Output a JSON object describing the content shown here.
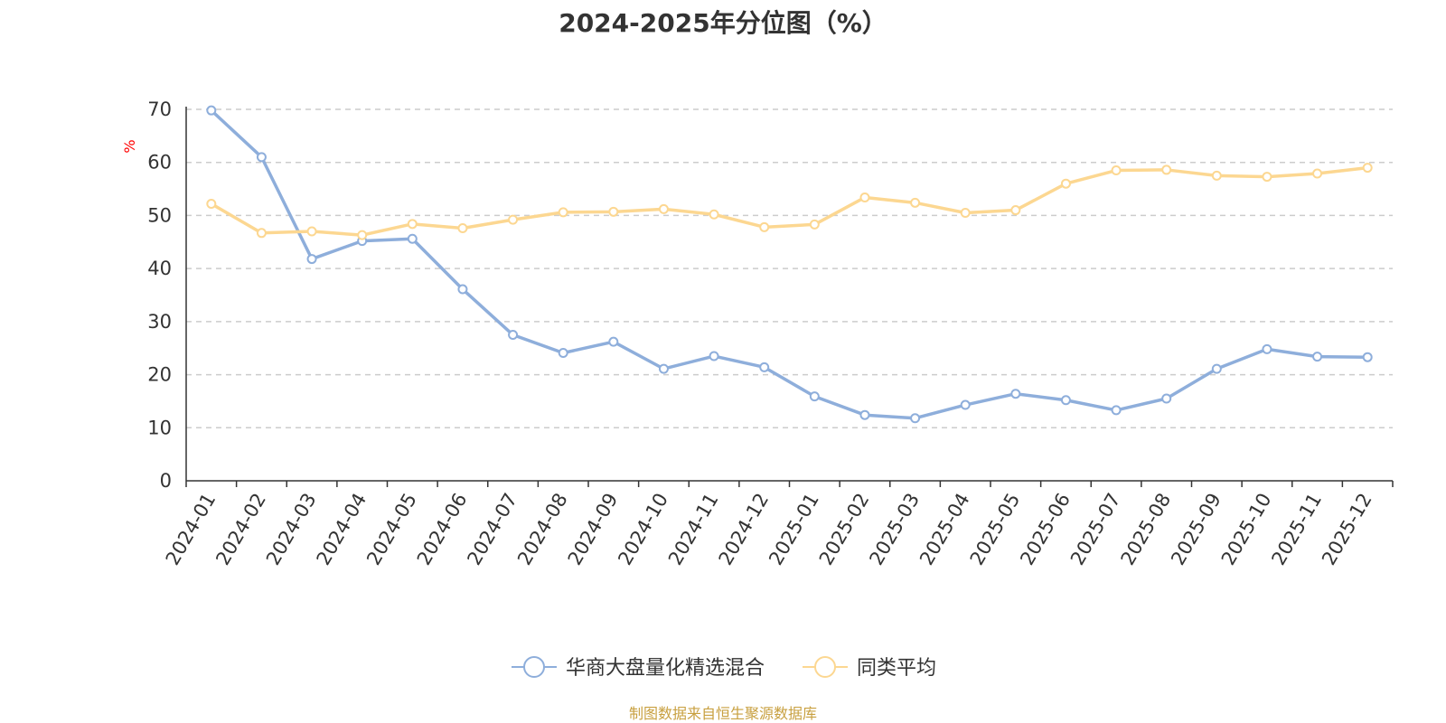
{
  "title": "2024-2025年分位图（%）",
  "source": "制图数据来自恒生聚源数据库",
  "chart_data": {
    "type": "line",
    "title": "2024-2025年分位图（%）",
    "ylabel": "%",
    "xlabel": "",
    "ylim": [
      0,
      70
    ],
    "yticks": [
      0,
      10,
      20,
      30,
      40,
      50,
      60,
      70
    ],
    "grid": "horizontal-dashed",
    "legend_position": "bottom",
    "categories": [
      "2024-01",
      "2024-02",
      "2024-03",
      "2024-04",
      "2024-05",
      "2024-06",
      "2024-07",
      "2024-08",
      "2024-09",
      "2024-10",
      "2024-11",
      "2024-12",
      "2025-01",
      "2025-02",
      "2025-03",
      "2025-04",
      "2025-05",
      "2025-06",
      "2025-07",
      "2025-08",
      "2025-09",
      "2025-10",
      "2025-11",
      "2025-12"
    ],
    "series": [
      {
        "name": "华商大盘量化精选混合",
        "color": "#8eaedb",
        "values": [
          69.8,
          61.0,
          41.8,
          45.2,
          45.6,
          36.1,
          27.5,
          24.1,
          26.2,
          21.1,
          23.5,
          21.4,
          15.9,
          12.4,
          11.8,
          14.3,
          16.4,
          15.2,
          13.3,
          15.5,
          21.1,
          24.8,
          23.4,
          23.3
        ]
      },
      {
        "name": "同类平均",
        "color": "#fcd791",
        "values": [
          52.2,
          46.7,
          47.0,
          46.3,
          48.4,
          47.6,
          49.2,
          50.6,
          50.7,
          51.2,
          50.2,
          47.8,
          48.3,
          53.4,
          52.4,
          50.5,
          51.0,
          56.0,
          58.5,
          58.6,
          57.5,
          57.3,
          57.9,
          59.0
        ]
      }
    ]
  }
}
